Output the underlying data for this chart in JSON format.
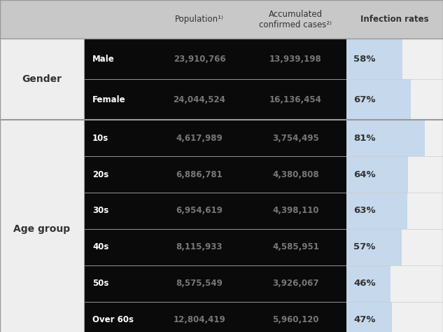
{
  "sections": [
    {
      "group": "Gender",
      "rows": [
        {
          "label": "Male",
          "population": "23,910,766",
          "confirmed": "13,939,198",
          "rate": 58
        },
        {
          "label": "Female",
          "population": "24,044,524",
          "confirmed": "16,136,454",
          "rate": 67
        }
      ]
    },
    {
      "group": "Age group",
      "rows": [
        {
          "label": "10s",
          "population": "4,617,989",
          "confirmed": "3,754,495",
          "rate": 81
        },
        {
          "label": "20s",
          "population": "6,886,781",
          "confirmed": "4,380,808",
          "rate": 64
        },
        {
          "label": "30s",
          "population": "6,954,619",
          "confirmed": "4,398,110",
          "rate": 63
        },
        {
          "label": "40s",
          "population": "8,115,933",
          "confirmed": "4,585,951",
          "rate": 57
        },
        {
          "label": "50s",
          "population": "8,575,549",
          "confirmed": "3,926,067",
          "rate": 46
        },
        {
          "label": "Over 60s",
          "population": "12,804,419",
          "confirmed": "5,960,120",
          "rate": 47
        }
      ]
    }
  ],
  "header_bg": "#c8c8c8",
  "data_bg_dark": "#0a0a0a",
  "data_bg_light": "#dce8f4",
  "group_label_bg": "#eeeeee",
  "border_color": "#999999",
  "thin_border": "#cccccc",
  "text_light": "#ffffff",
  "text_dark": "#333333",
  "text_gray": "#777777",
  "bar_color": "#c5d8ec",
  "fig_bg": "#f0f0f0",
  "max_rate": 100
}
